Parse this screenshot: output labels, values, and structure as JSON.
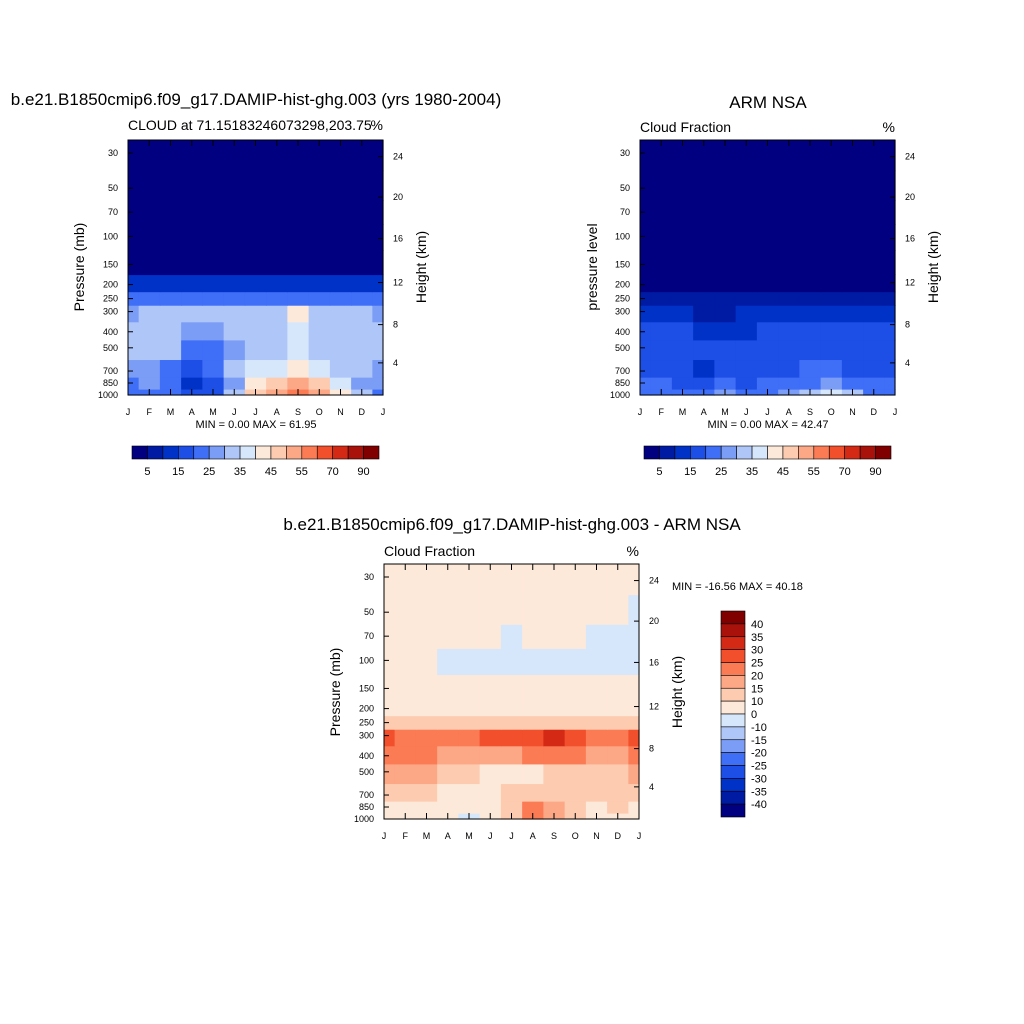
{
  "colors": {
    "seq": [
      "#000080",
      "#001ba3",
      "#0032c8",
      "#1d4fe6",
      "#3f6ef7",
      "#7b9df5",
      "#afc6f8",
      "#d6e6fb",
      "#fde9d9",
      "#fdcbb0",
      "#fca785",
      "#fb7b55",
      "#f24f2c",
      "#d42a15",
      "#a8120b",
      "#800000"
    ],
    "div": [
      "#000080",
      "#001ba3",
      "#0032c8",
      "#1d4fe6",
      "#3f6ef7",
      "#7b9df5",
      "#afc6f8",
      "#d6e6fb",
      "#fde9d9",
      "#fdcbb0",
      "#fca785",
      "#fb7b55",
      "#f24f2c",
      "#d42a15",
      "#a8120b",
      "#800000"
    ]
  },
  "months": [
    "J",
    "F",
    "M",
    "A",
    "M",
    "J",
    "J",
    "A",
    "S",
    "O",
    "N",
    "D",
    "J"
  ],
  "pressure_ticks": [
    "30",
    "50",
    "70",
    "100",
    "150",
    "200",
    "250",
    "300",
    "400",
    "500",
    "700",
    "850",
    "1000"
  ],
  "height_ticks": [
    "24",
    "20",
    "16",
    "12",
    "8",
    "4"
  ],
  "panels": [
    {
      "key": "model",
      "title": "b.e21.B1850cmip6.f09_g17.DAMIP-hist-ghg.003 (yrs 1980-2004)",
      "left_label": "CLOUD at 71.15183246073298,203.75",
      "right_label": "%",
      "ylabel_left": "Pressure (mb)",
      "ylabel_right": "Height (km)",
      "minmax": "MIN =   0.00 MAX =  61.95"
    },
    {
      "key": "obs",
      "title": "ARM NSA",
      "left_label": "Cloud Fraction",
      "right_label": "%",
      "ylabel_left": "pressure level",
      "ylabel_right": "Height (km)",
      "minmax": "MIN =   0.00 MAX =  42.47"
    },
    {
      "key": "diff",
      "title": "b.e21.B1850cmip6.f09_g17.DAMIP-hist-ghg.003 - ARM NSA",
      "left_label": "Cloud Fraction",
      "right_label": "%",
      "ylabel_left": "Pressure (mb)",
      "ylabel_right": "Height (km)",
      "minmax": "MIN = -16.56 MAX =  40.18"
    }
  ],
  "colorbar_seq": {
    "labels": [
      "5",
      "15",
      "25",
      "35",
      "45",
      "55",
      "70",
      "90"
    ]
  },
  "colorbar_div": {
    "labels": [
      "40",
      "35",
      "30",
      "25",
      "20",
      "15",
      "10",
      "0",
      "-10",
      "-15",
      "-20",
      "-25",
      "-30",
      "-35",
      "-40"
    ]
  },
  "chart_data": [
    {
      "type": "heatmap",
      "name": "model",
      "x": [
        "J",
        "F",
        "M",
        "A",
        "M",
        "J",
        "J",
        "A",
        "S",
        "O",
        "N",
        "D",
        "J"
      ],
      "y_pressure_mb": [
        1000,
        850,
        700,
        500,
        400,
        300,
        250,
        200,
        150,
        100,
        70,
        50,
        30
      ],
      "values": [
        [
          22,
          24,
          20,
          16,
          18,
          30,
          45,
          50,
          55,
          52,
          40,
          30,
          24
        ],
        [
          24,
          26,
          20,
          14,
          16,
          28,
          42,
          46,
          50,
          48,
          36,
          28,
          26
        ],
        [
          28,
          28,
          24,
          18,
          20,
          30,
          36,
          38,
          40,
          38,
          34,
          30,
          28
        ],
        [
          32,
          34,
          30,
          24,
          22,
          28,
          32,
          34,
          36,
          34,
          32,
          32,
          32
        ],
        [
          30,
          32,
          32,
          28,
          28,
          30,
          32,
          34,
          36,
          34,
          32,
          32,
          30
        ],
        [
          28,
          30,
          30,
          30,
          30,
          32,
          32,
          34,
          42,
          34,
          32,
          30,
          28
        ],
        [
          20,
          22,
          22,
          20,
          20,
          22,
          22,
          22,
          24,
          22,
          22,
          22,
          20
        ],
        [
          10,
          12,
          12,
          10,
          10,
          12,
          12,
          12,
          12,
          12,
          12,
          12,
          10
        ],
        [
          3,
          3,
          3,
          3,
          3,
          3,
          3,
          3,
          3,
          3,
          3,
          3,
          3
        ],
        [
          2,
          2,
          2,
          2,
          2,
          2,
          2,
          2,
          2,
          2,
          2,
          2,
          2
        ],
        [
          2,
          2,
          2,
          2,
          2,
          2,
          2,
          2,
          2,
          2,
          2,
          2,
          2
        ],
        [
          2,
          2,
          2,
          2,
          2,
          2,
          2,
          2,
          2,
          2,
          2,
          2,
          2
        ],
        [
          2,
          2,
          2,
          2,
          2,
          2,
          2,
          2,
          2,
          2,
          2,
          2,
          2
        ]
      ],
      "levels": [
        5,
        10,
        15,
        20,
        25,
        30,
        35,
        40,
        45,
        50,
        55,
        60,
        70,
        80,
        90
      ],
      "min": 0.0,
      "max": 61.95
    },
    {
      "type": "heatmap",
      "name": "obs",
      "x": [
        "J",
        "F",
        "M",
        "A",
        "M",
        "J",
        "J",
        "A",
        "S",
        "O",
        "N",
        "D",
        "J"
      ],
      "y_pressure_mb": [
        1000,
        850,
        700,
        500,
        400,
        300,
        250,
        200,
        150,
        100,
        70,
        50,
        30
      ],
      "values": [
        [
          24,
          24,
          20,
          22,
          26,
          24,
          22,
          26,
          30,
          36,
          30,
          24,
          22
        ],
        [
          20,
          22,
          18,
          16,
          20,
          16,
          20,
          22,
          24,
          26,
          22,
          20,
          20
        ],
        [
          18,
          18,
          16,
          14,
          16,
          16,
          18,
          18,
          20,
          20,
          18,
          18,
          18
        ],
        [
          18,
          18,
          18,
          16,
          16,
          16,
          18,
          18,
          18,
          18,
          18,
          18,
          18
        ],
        [
          16,
          16,
          16,
          14,
          14,
          14,
          16,
          16,
          16,
          16,
          16,
          16,
          16
        ],
        [
          12,
          12,
          10,
          9,
          9,
          10,
          12,
          12,
          12,
          11,
          11,
          12,
          12
        ],
        [
          6,
          6,
          5,
          5,
          5,
          6,
          7,
          8,
          8,
          7,
          7,
          7,
          6
        ],
        [
          3,
          3,
          3,
          3,
          3,
          3,
          3,
          3,
          3,
          3,
          3,
          3,
          3
        ],
        [
          2,
          2,
          2,
          2,
          2,
          2,
          2,
          2,
          2,
          2,
          2,
          2,
          2
        ],
        [
          1,
          1,
          1,
          1,
          1,
          1,
          1,
          1,
          1,
          1,
          1,
          1,
          1
        ],
        [
          1,
          1,
          1,
          1,
          1,
          1,
          1,
          1,
          1,
          1,
          1,
          1,
          1
        ],
        [
          1,
          1,
          1,
          1,
          1,
          1,
          1,
          1,
          1,
          1,
          1,
          1,
          1
        ],
        [
          1,
          1,
          1,
          1,
          1,
          1,
          1,
          1,
          1,
          1,
          1,
          1,
          1
        ]
      ],
      "levels": [
        5,
        10,
        15,
        20,
        25,
        30,
        35,
        40,
        45,
        50,
        55,
        60,
        70,
        80,
        90
      ],
      "min": 0.0,
      "max": 42.47
    },
    {
      "type": "heatmap",
      "name": "diff",
      "x": [
        "J",
        "F",
        "M",
        "A",
        "M",
        "J",
        "J",
        "A",
        "S",
        "O",
        "N",
        "D",
        "J"
      ],
      "y_pressure_mb": [
        1000,
        850,
        700,
        500,
        400,
        300,
        250,
        200,
        150,
        100,
        70,
        50,
        30
      ],
      "values": [
        [
          2,
          2,
          2,
          2,
          -2,
          4,
          12,
          24,
          18,
          10,
          6,
          8,
          2
        ],
        [
          6,
          6,
          6,
          2,
          0,
          6,
          14,
          20,
          16,
          12,
          8,
          10,
          6
        ],
        [
          12,
          10,
          10,
          6,
          4,
          4,
          10,
          12,
          14,
          12,
          10,
          10,
          10
        ],
        [
          16,
          16,
          16,
          14,
          10,
          8,
          6,
          8,
          10,
          12,
          14,
          14,
          16
        ],
        [
          22,
          20,
          20,
          18,
          16,
          16,
          18,
          20,
          20,
          20,
          18,
          18,
          20
        ],
        [
          28,
          24,
          22,
          22,
          20,
          26,
          28,
          28,
          30,
          28,
          24,
          22,
          26
        ],
        [
          14,
          14,
          14,
          12,
          12,
          12,
          14,
          14,
          14,
          14,
          14,
          14,
          14
        ],
        [
          4,
          4,
          4,
          4,
          4,
          4,
          4,
          4,
          4,
          4,
          4,
          4,
          4
        ],
        [
          2,
          2,
          2,
          2,
          2,
          2,
          2,
          2,
          2,
          2,
          2,
          2,
          2
        ],
        [
          2,
          2,
          2,
          -2,
          -2,
          -2,
          -2,
          -2,
          -2,
          -2,
          -2,
          -2,
          -2
        ],
        [
          2,
          2,
          2,
          2,
          2,
          2,
          -4,
          2,
          2,
          2,
          -2,
          -2,
          -2
        ],
        [
          2,
          2,
          2,
          2,
          2,
          2,
          2,
          2,
          2,
          2,
          2,
          2,
          -2
        ],
        [
          2,
          2,
          2,
          2,
          2,
          2,
          2,
          2,
          2,
          2,
          2,
          2,
          2
        ]
      ],
      "levels": [
        -40,
        -35,
        -30,
        -25,
        -20,
        -15,
        -10,
        0,
        10,
        15,
        20,
        25,
        30,
        35,
        40
      ],
      "min": -16.56,
      "max": 40.18
    }
  ]
}
